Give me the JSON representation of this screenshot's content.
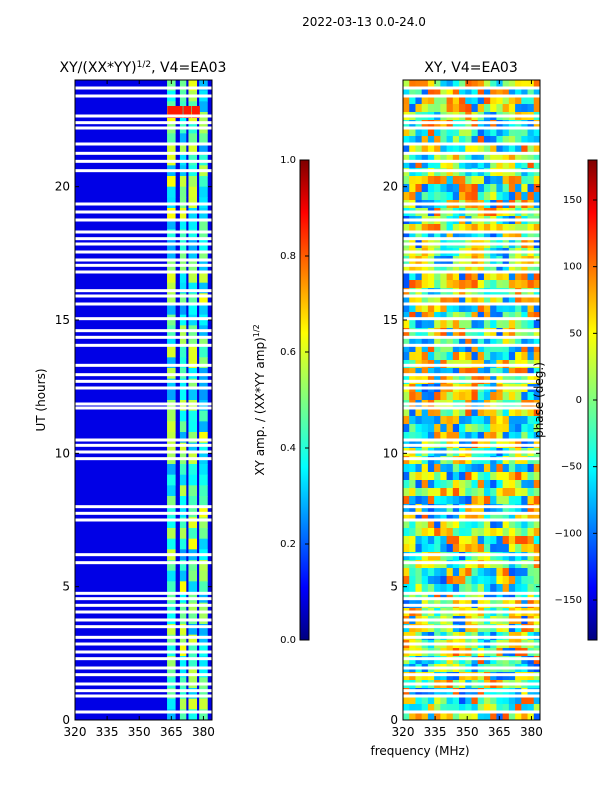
{
  "suptitle": "2022-03-13 0.0-24.0",
  "common_xlabel": "frequency (MHz)",
  "chart_data": [
    {
      "type": "heatmap",
      "title": "XY/(XX*YY)",
      "title_sup": "1/2",
      "title_suffix": ", V4=EA03",
      "xlabel": "",
      "ylabel": "UT (hours)",
      "xlim": [
        320,
        384
      ],
      "ylim": [
        0,
        24
      ],
      "xticks": [
        320,
        335,
        350,
        365,
        380
      ],
      "yticks": [
        0,
        5,
        10,
        15,
        20
      ],
      "colorbar": {
        "label": "XY amp. / (XX*YY amp)",
        "label_sup": "1/2",
        "range": [
          0.0,
          1.0
        ],
        "ticks": [
          "0.0",
          "0.2",
          "0.4",
          "0.6",
          "0.8",
          "1.0"
        ],
        "colormap": "jet"
      },
      "bright_bands_mhz": [
        [
          363,
          367
        ],
        [
          369,
          372
        ],
        [
          373,
          377
        ],
        [
          378,
          382
        ]
      ],
      "background_value": 0.1,
      "band_value": 0.45
    },
    {
      "type": "heatmap",
      "title": "XY, V4=EA03",
      "xlabel": "frequency (MHz)",
      "ylabel": "",
      "xlim": [
        320,
        384
      ],
      "ylim": [
        0,
        24
      ],
      "xticks": [
        320,
        335,
        350,
        365,
        380
      ],
      "yticks": [
        0,
        5,
        10,
        15,
        20
      ],
      "colorbar": {
        "label": "phase (deg.)",
        "range": [
          -180,
          180
        ],
        "ticks": [
          "−150",
          "−100",
          "−50",
          "0",
          "50",
          "100",
          "150"
        ],
        "colormap": "jet"
      }
    }
  ],
  "flagged_hours": [
    0.3,
    0.9,
    1.1,
    1.35,
    1.7,
    1.95,
    2.3,
    2.55,
    2.85,
    3.1,
    3.5,
    3.75,
    4.05,
    4.3,
    4.55,
    4.75,
    5.9,
    6.2,
    7.5,
    7.75,
    8.0,
    9.8,
    10.05,
    10.3,
    10.5,
    11.7,
    11.85,
    12.45,
    12.7,
    12.95,
    13.3,
    14.05,
    14.35,
    14.6,
    15.05,
    15.6,
    15.9,
    16.1,
    16.8,
    17.05,
    17.25,
    17.55,
    17.85,
    18.05,
    18.3,
    18.75,
    19.05,
    19.35,
    20.6,
    20.95,
    21.25,
    21.6,
    22.2,
    22.4,
    22.65,
    23.4,
    23.7
  ]
}
